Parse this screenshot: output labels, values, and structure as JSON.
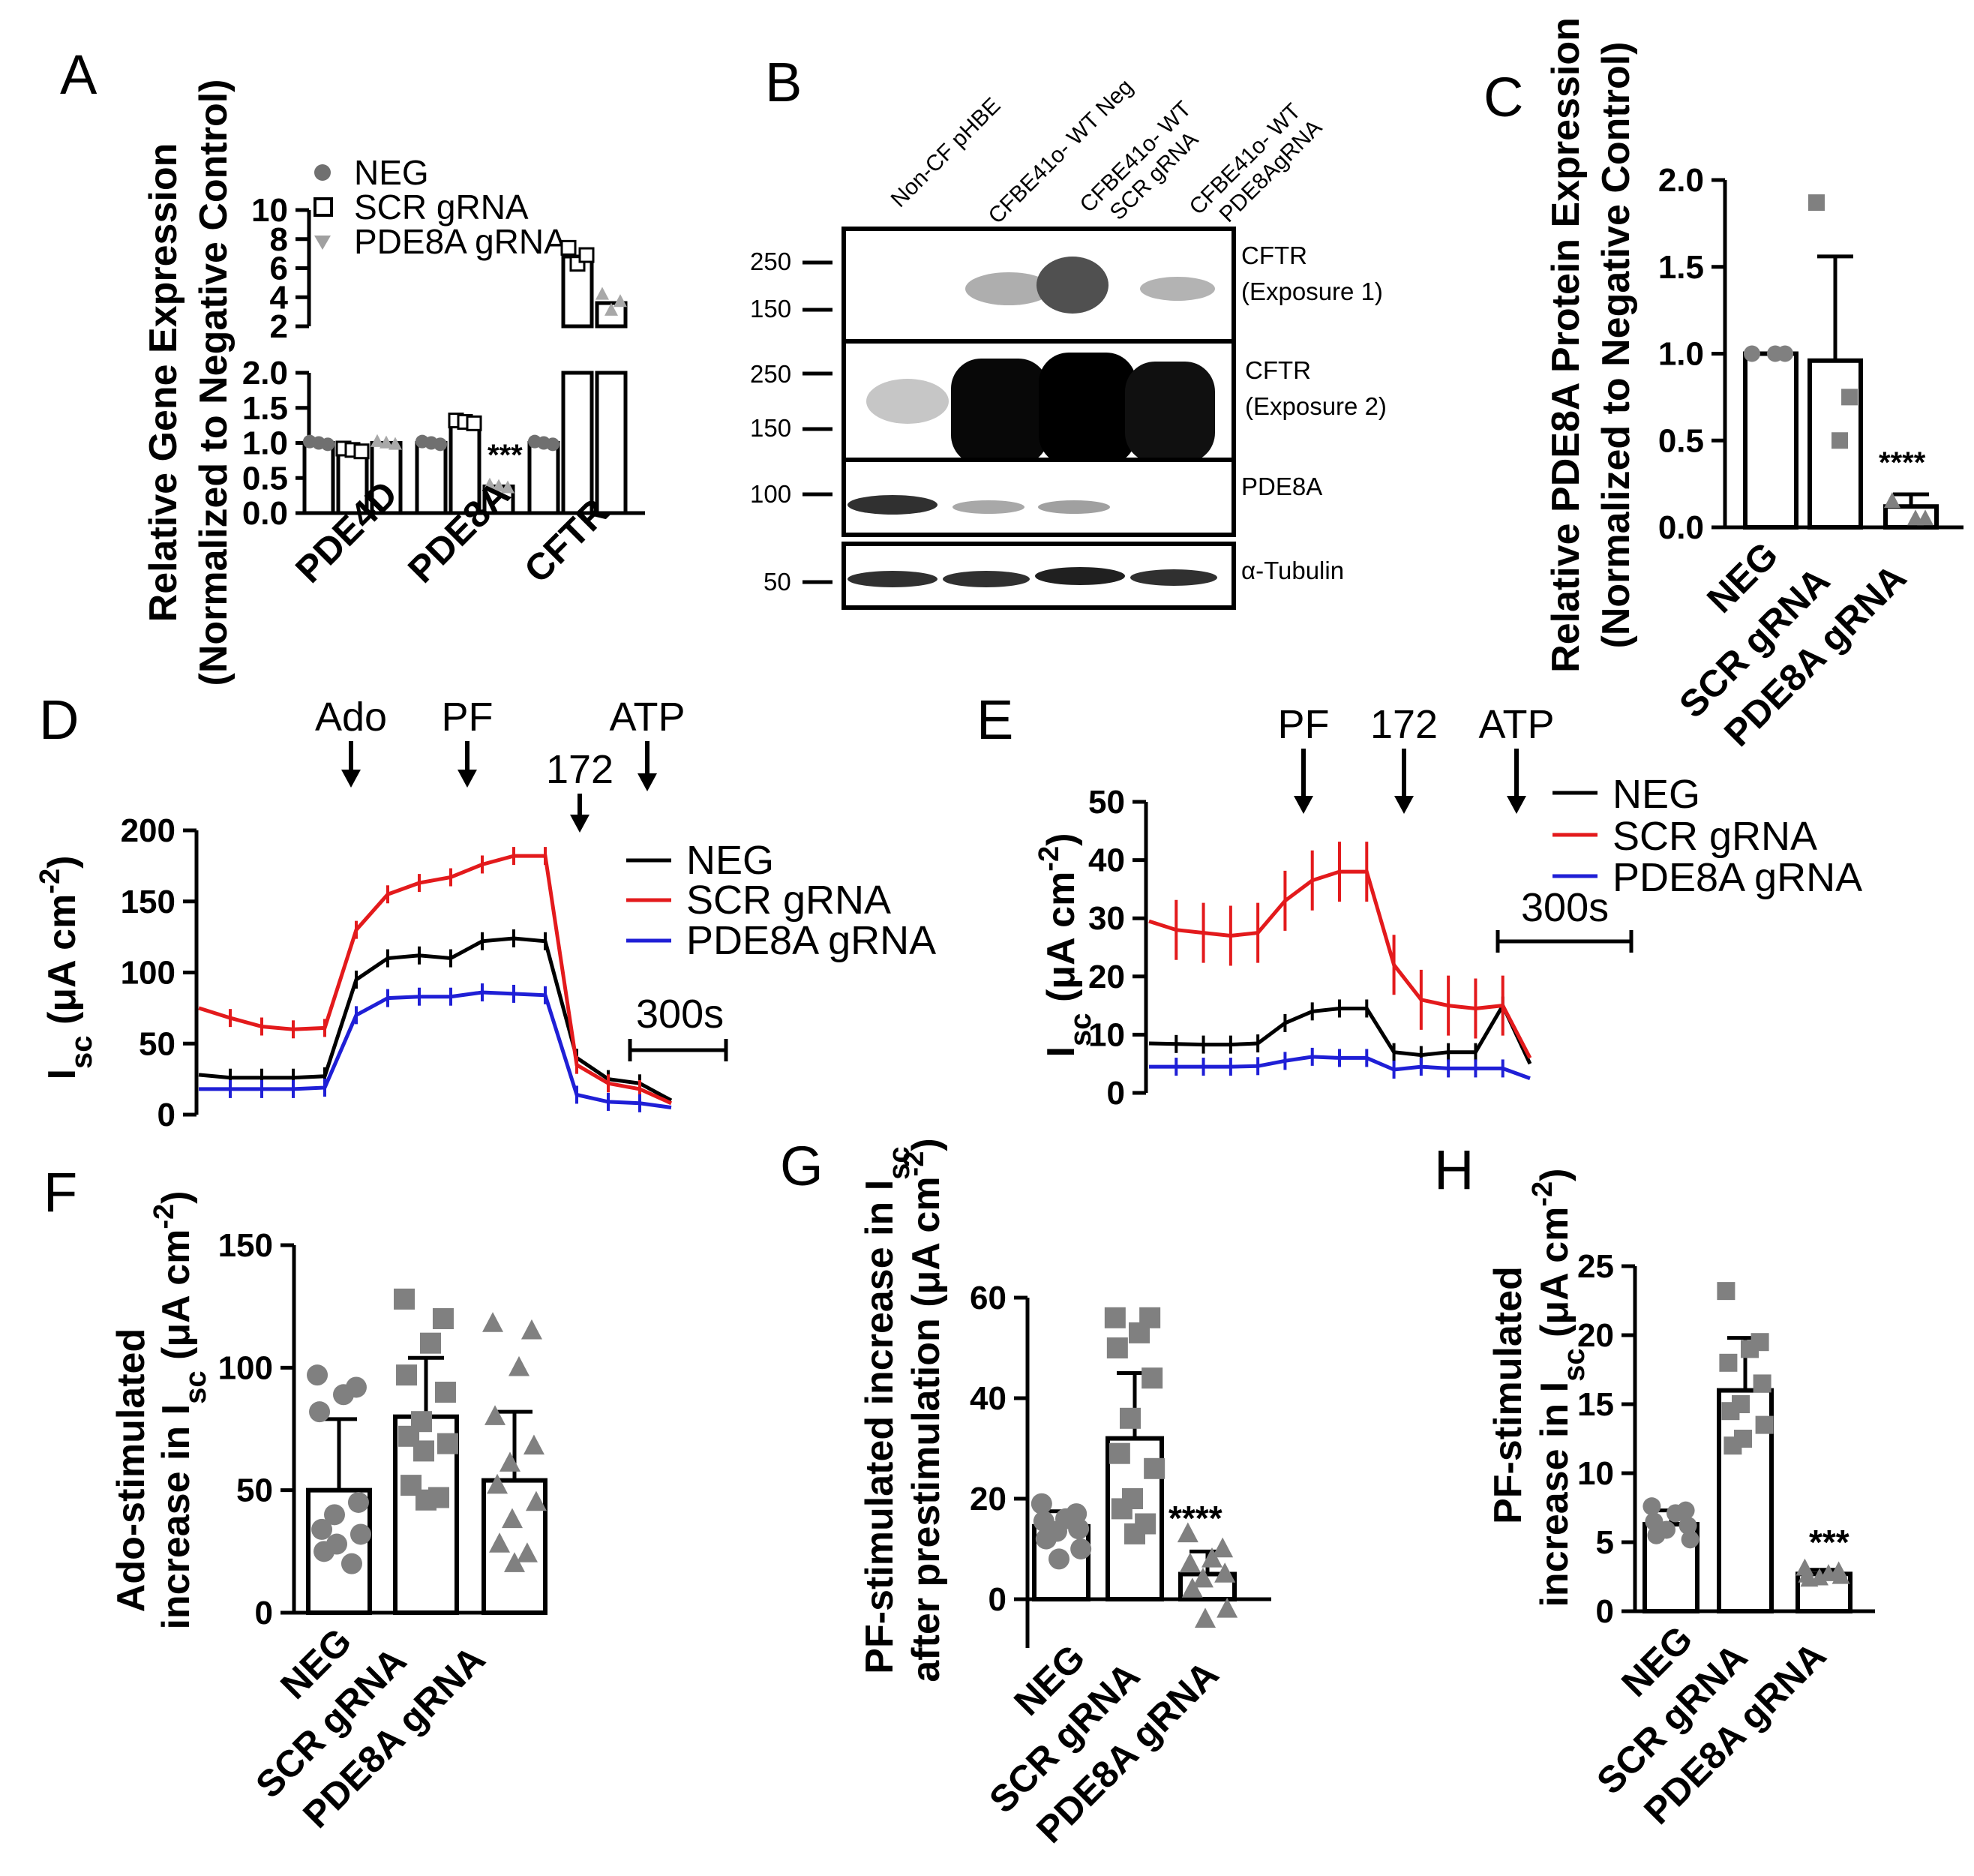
{
  "panels": {
    "a": {
      "label": "A"
    },
    "b": {
      "label": "B"
    },
    "c": {
      "label": "C"
    },
    "d": {
      "label": "D"
    },
    "e": {
      "label": "E"
    },
    "f": {
      "label": "F"
    },
    "g": {
      "label": "G"
    },
    "h": {
      "label": "H"
    }
  },
  "colors": {
    "neg": "#000000",
    "scr": "#e31a1c",
    "pde": "#1f1fd6",
    "marker": "#808080"
  },
  "chart_data": [
    {
      "panel": "A",
      "type": "bar",
      "ylabel_line1": "Relative Gene Expression",
      "ylabel_line2": "(Normalized to Negative Control)",
      "categories": [
        "PDE4D",
        "PDE8A",
        "CFTR"
      ],
      "series": [
        {
          "name": "NEG",
          "values": [
            1.0,
            1.0,
            1.0
          ]
        },
        {
          "name": "SCR gRNA",
          "values": [
            0.9,
            1.3,
            6.8
          ]
        },
        {
          "name": "PDE8A gRNA",
          "values": [
            1.0,
            0.38,
            3.6
          ]
        }
      ],
      "y_ticks_lower": [
        "0.0",
        "0.5",
        "1.0",
        "1.5",
        "2.0"
      ],
      "y_ticks_upper": [
        "2",
        "4",
        "6",
        "8",
        "10"
      ],
      "annotation": "***"
    },
    {
      "panel": "C",
      "type": "bar",
      "ylabel_line1": "Relative PDE8A Protein Expression",
      "ylabel_line2": "(Normalized to Negative Control)",
      "categories": [
        "NEG",
        "SCR gRNA",
        "PDE8A gRNA"
      ],
      "values": [
        1.0,
        0.96,
        0.12
      ],
      "errors": [
        0.0,
        0.6,
        0.07
      ],
      "points": [
        [
          1.0,
          1.0,
          1.0
        ],
        [
          1.87,
          0.75,
          0.5
        ],
        [
          0.15,
          0.05,
          0.05
        ]
      ],
      "y_ticks": [
        "0.0",
        "0.5",
        "1.0",
        "1.5",
        "2.0"
      ],
      "ylim": [
        0,
        2.0
      ],
      "annotation": "****"
    },
    {
      "panel": "D",
      "type": "line",
      "ylabel_main": "I",
      "ylabel_sub": "sc",
      "ylabel_unit": " (μA cm",
      "ylabel_exp": "-2",
      "ylabel_close": ")",
      "y_ticks": [
        "0",
        "50",
        "100",
        "150",
        "200"
      ],
      "ylim": [
        0,
        200
      ],
      "arrows": [
        "Ado",
        "PF",
        "172",
        "ATP"
      ],
      "scale_bar": "300s",
      "series": [
        {
          "name": "NEG",
          "y": [
            28,
            26,
            26,
            26,
            27,
            95,
            110,
            112,
            110,
            122,
            124,
            122,
            40,
            25,
            22,
            10
          ]
        },
        {
          "name": "SCR gRNA",
          "y": [
            75,
            68,
            62,
            60,
            61,
            130,
            155,
            163,
            167,
            176,
            182,
            182,
            35,
            22,
            18,
            8
          ]
        },
        {
          "name": "PDE8A gRNA",
          "y": [
            18,
            18,
            18,
            18,
            19,
            70,
            82,
            83,
            83,
            86,
            85,
            84,
            14,
            9,
            8,
            5
          ]
        }
      ]
    },
    {
      "panel": "E",
      "type": "line",
      "ylabel_main": "I",
      "ylabel_sub": "sc",
      "ylabel_unit": " (μA cm",
      "ylabel_exp": "-2",
      "ylabel_close": ")",
      "y_ticks": [
        "0",
        "10",
        "20",
        "30",
        "40",
        "50"
      ],
      "ylim": [
        0,
        50
      ],
      "arrows": [
        "PF",
        "172",
        "ATP"
      ],
      "scale_bar": "300s",
      "series": [
        {
          "name": "NEG",
          "y": [
            8.5,
            8.4,
            8.3,
            8.3,
            8.5,
            12,
            14,
            14.5,
            14.5,
            7,
            6.5,
            7,
            7,
            15,
            5
          ]
        },
        {
          "name": "SCR gRNA",
          "y": [
            29.5,
            28,
            27.5,
            27,
            27.5,
            33,
            36.5,
            38,
            38,
            22,
            16,
            15,
            14.5,
            15,
            6
          ]
        },
        {
          "name": "PDE8A gRNA",
          "y": [
            4.5,
            4.5,
            4.5,
            4.5,
            4.6,
            5.5,
            6.2,
            6.0,
            6.0,
            4.0,
            4.5,
            4.2,
            4.2,
            4.2,
            2.5
          ]
        }
      ]
    },
    {
      "panel": "F",
      "type": "bar",
      "ylabel_line1": "Ado-stimulated",
      "ylabel_line2a": "increase in I",
      "ylabel_sub": "sc",
      "ylabel_line2b": " (μA cm",
      "ylabel_exp": "-2",
      "ylabel_close": ")",
      "categories": [
        "NEG",
        "SCR gRNA",
        "PDE8A gRNA"
      ],
      "values": [
        50,
        80,
        54
      ],
      "errors": [
        29,
        24,
        28
      ],
      "points": [
        [
          97,
          92,
          89,
          82,
          45,
          40,
          34,
          32,
          28,
          25,
          20
        ],
        [
          128,
          120,
          110,
          97,
          90,
          78,
          72,
          69,
          66,
          52,
          47,
          46
        ],
        [
          118,
          115,
          100,
          80,
          68,
          61,
          52,
          45,
          38,
          28,
          24,
          20
        ]
      ],
      "y_ticks": [
        "0",
        "50",
        "100",
        "150"
      ],
      "ylim": [
        0,
        150
      ]
    },
    {
      "panel": "G",
      "type": "bar",
      "ylabel_line1": "PF-stimulated increase in I",
      "ylabel_sub1": "sc",
      "ylabel_line2a": "after prestimulation (μA cm",
      "ylabel_exp": "-2",
      "ylabel_close": ")",
      "categories": [
        "NEG",
        "SCR gRNA",
        "PDE8A gRNA"
      ],
      "values": [
        14.5,
        32,
        5
      ],
      "errors": [
        3,
        13,
        4.5
      ],
      "points": [
        [
          19,
          17,
          16,
          15.5,
          14,
          13.5,
          12,
          10,
          8
        ],
        [
          56,
          56,
          53,
          50,
          44,
          36,
          29,
          26,
          20,
          18,
          15,
          13
        ],
        [
          13,
          10,
          8,
          7,
          5,
          4,
          2,
          -2,
          -4
        ]
      ],
      "y_ticks": [
        "0",
        "20",
        "40",
        "60"
      ],
      "ylim": [
        -5,
        60
      ],
      "annotation": "****"
    },
    {
      "panel": "H",
      "type": "bar",
      "ylabel_line1": "PF-stimulated",
      "ylabel_line2a": "increase in I",
      "ylabel_sub": "sc",
      "ylabel_line2b": " (μA cm",
      "ylabel_exp": "-2",
      "ylabel_close": ")",
      "categories": [
        "NEG",
        "SCR gRNA",
        "PDE8A gRNA"
      ],
      "values": [
        6.3,
        16,
        2.7
      ],
      "errors": [
        1,
        3.8,
        0.3
      ],
      "points": [
        [
          7.6,
          7.3,
          7.1,
          6.5,
          6.2,
          5.9,
          5.5,
          5.2
        ],
        [
          23.2,
          19.5,
          19,
          18,
          16.5,
          15,
          14.5,
          13.5,
          12.5,
          12
        ],
        [
          3.1,
          2.9,
          2.7,
          2.6,
          2.5,
          2.4,
          2.3
        ]
      ],
      "y_ticks": [
        "0",
        "5",
        "10",
        "15",
        "20",
        "25"
      ],
      "ylim": [
        0,
        25
      ],
      "annotation": "***"
    }
  ],
  "blot": {
    "lanes": [
      "Non-CF pHBE",
      "CFBE41o- WT Neg",
      "CFBE41o- WT",
      "SCR gRNA",
      "CFBE41o- WT",
      "PDE8AgRNA"
    ],
    "rows": [
      {
        "label1": "CFTR",
        "label2": "(Exposure 1)",
        "markers": [
          "250",
          "150"
        ]
      },
      {
        "label1": "CFTR",
        "label2": "(Exposure 2)",
        "markers": [
          "250",
          "150"
        ]
      },
      {
        "label1": "PDE8A",
        "label2": "",
        "markers": [
          "100"
        ]
      },
      {
        "label1": "α-Tubulin",
        "label2": "",
        "markers": [
          "50"
        ]
      }
    ]
  }
}
